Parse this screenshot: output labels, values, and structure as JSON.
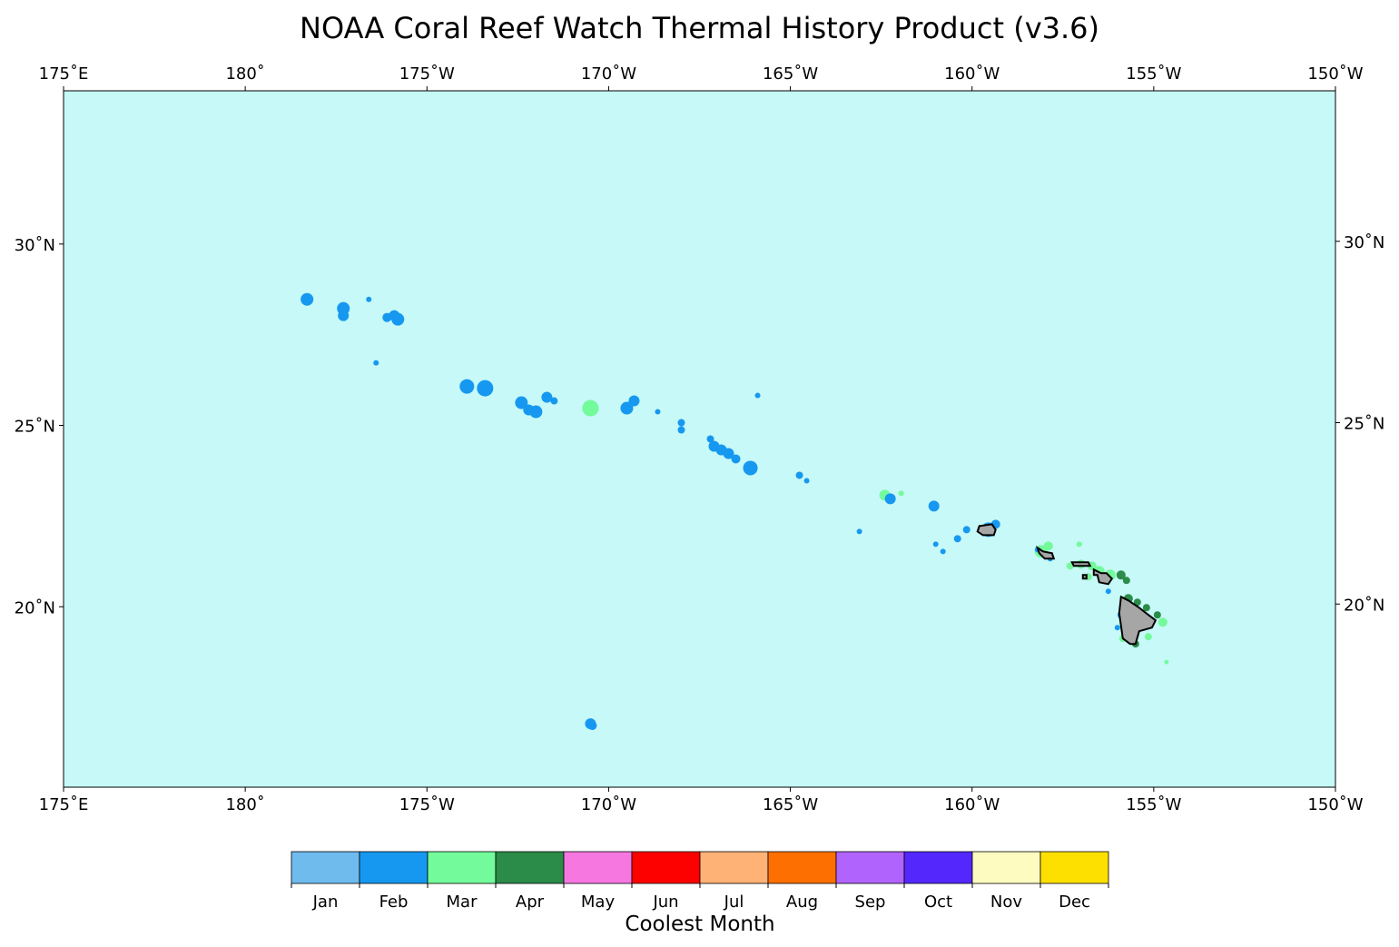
{
  "title": "NOAA Coral Reef Watch Thermal History Product (v3.6)",
  "map": {
    "ocean_color": "#c6f9f7",
    "land_color": "#a6a6a6",
    "lon_range": [
      175,
      210
    ],
    "lat_range": [
      15.0,
      34.2
    ],
    "lon_tick_labels": [
      "175˚E",
      "180˚",
      "175˚W",
      "170˚W",
      "165˚W",
      "160˚W",
      "155˚W",
      "150˚W"
    ],
    "lat_tick_labels": [
      "30˚N",
      "25˚N",
      "20˚N"
    ],
    "lat_ticks": [
      30,
      25,
      20
    ]
  },
  "colorbar": {
    "label": "Coolest Month",
    "entries": [
      {
        "label": "Jan",
        "color": "#6fbbee"
      },
      {
        "label": "Feb",
        "color": "#1698f1"
      },
      {
        "label": "Mar",
        "color": "#73fa9b"
      },
      {
        "label": "Apr",
        "color": "#2b8b49"
      },
      {
        "label": "May",
        "color": "#f777e0"
      },
      {
        "label": "Jun",
        "color": "#fd0000"
      },
      {
        "label": "Jul",
        "color": "#feb276"
      },
      {
        "label": "Aug",
        "color": "#fd6f00"
      },
      {
        "label": "Sep",
        "color": "#b163fd"
      },
      {
        "label": "Oct",
        "color": "#5428fc"
      },
      {
        "label": "Nov",
        "color": "#fdfbbf"
      },
      {
        "label": "Dec",
        "color": "#fde000"
      }
    ]
  },
  "reef_pixels": [
    {
      "lon": 181.7,
      "lat": 28.45,
      "month": "Feb",
      "size": 0.35
    },
    {
      "lon": 182.7,
      "lat": 28.2,
      "month": "Feb",
      "size": 0.35
    },
    {
      "lon": 182.7,
      "lat": 28.0,
      "month": "Feb",
      "size": 0.3
    },
    {
      "lon": 183.4,
      "lat": 28.45,
      "month": "Feb",
      "size": 0.15
    },
    {
      "lon": 183.6,
      "lat": 26.7,
      "month": "Feb",
      "size": 0.15
    },
    {
      "lon": 183.9,
      "lat": 27.95,
      "month": "Feb",
      "size": 0.25
    },
    {
      "lon": 184.2,
      "lat": 27.9,
      "month": "Feb",
      "size": 0.35
    },
    {
      "lon": 184.1,
      "lat": 28.0,
      "month": "Feb",
      "size": 0.3
    },
    {
      "lon": 186.1,
      "lat": 26.05,
      "month": "Feb",
      "size": 0.4
    },
    {
      "lon": 186.6,
      "lat": 26.0,
      "month": "Feb",
      "size": 0.45
    },
    {
      "lon": 187.6,
      "lat": 25.6,
      "month": "Feb",
      "size": 0.35
    },
    {
      "lon": 187.8,
      "lat": 25.4,
      "month": "Feb",
      "size": 0.3
    },
    {
      "lon": 188.0,
      "lat": 25.35,
      "month": "Feb",
      "size": 0.35
    },
    {
      "lon": 188.3,
      "lat": 25.75,
      "month": "Feb",
      "size": 0.3
    },
    {
      "lon": 188.5,
      "lat": 25.65,
      "month": "Feb",
      "size": 0.2
    },
    {
      "lon": 189.5,
      "lat": 25.45,
      "month": "Mar",
      "size": 0.45
    },
    {
      "lon": 190.5,
      "lat": 25.45,
      "month": "Feb",
      "size": 0.35
    },
    {
      "lon": 190.7,
      "lat": 25.65,
      "month": "Feb",
      "size": 0.3
    },
    {
      "lon": 191.35,
      "lat": 25.35,
      "month": "Feb",
      "size": 0.15
    },
    {
      "lon": 192.0,
      "lat": 25.05,
      "month": "Feb",
      "size": 0.2
    },
    {
      "lon": 192.0,
      "lat": 24.85,
      "month": "Feb",
      "size": 0.2
    },
    {
      "lon": 192.8,
      "lat": 24.6,
      "month": "Feb",
      "size": 0.2
    },
    {
      "lon": 192.9,
      "lat": 24.4,
      "month": "Feb",
      "size": 0.3
    },
    {
      "lon": 193.1,
      "lat": 24.3,
      "month": "Feb",
      "size": 0.3
    },
    {
      "lon": 193.3,
      "lat": 24.2,
      "month": "Feb",
      "size": 0.3
    },
    {
      "lon": 193.5,
      "lat": 24.05,
      "month": "Feb",
      "size": 0.25
    },
    {
      "lon": 193.9,
      "lat": 23.8,
      "month": "Feb",
      "size": 0.4
    },
    {
      "lon": 194.1,
      "lat": 25.8,
      "month": "Feb",
      "size": 0.15
    },
    {
      "lon": 195.25,
      "lat": 23.6,
      "month": "Feb",
      "size": 0.2
    },
    {
      "lon": 195.45,
      "lat": 23.45,
      "month": "Feb",
      "size": 0.15
    },
    {
      "lon": 196.9,
      "lat": 22.05,
      "month": "Feb",
      "size": 0.15
    },
    {
      "lon": 197.6,
      "lat": 23.05,
      "month": "Mar",
      "size": 0.3
    },
    {
      "lon": 197.75,
      "lat": 22.95,
      "month": "Feb",
      "size": 0.3
    },
    {
      "lon": 198.05,
      "lat": 23.1,
      "month": "Mar",
      "size": 0.15
    },
    {
      "lon": 198.95,
      "lat": 22.75,
      "month": "Feb",
      "size": 0.3
    },
    {
      "lon": 199.0,
      "lat": 21.7,
      "month": "Feb",
      "size": 0.15
    },
    {
      "lon": 199.2,
      "lat": 21.5,
      "month": "Feb",
      "size": 0.15
    },
    {
      "lon": 199.6,
      "lat": 21.85,
      "month": "Feb",
      "size": 0.2
    },
    {
      "lon": 199.85,
      "lat": 22.1,
      "month": "Feb",
      "size": 0.2
    },
    {
      "lon": 200.45,
      "lat": 22.1,
      "month": "Feb",
      "size": 0.4
    },
    {
      "lon": 200.65,
      "lat": 22.25,
      "month": "Feb",
      "size": 0.25
    },
    {
      "lon": 201.9,
      "lat": 21.5,
      "month": "Mar",
      "size": 0.35
    },
    {
      "lon": 201.8,
      "lat": 21.55,
      "month": "Feb",
      "size": 0.15
    },
    {
      "lon": 202.1,
      "lat": 21.65,
      "month": "Mar",
      "size": 0.25
    },
    {
      "lon": 202.15,
      "lat": 21.3,
      "month": "Feb",
      "size": 0.15
    },
    {
      "lon": 202.95,
      "lat": 21.7,
      "month": "Mar",
      "size": 0.15
    },
    {
      "lon": 202.7,
      "lat": 21.1,
      "month": "Mar",
      "size": 0.2
    },
    {
      "lon": 203.0,
      "lat": 21.15,
      "month": "Mar",
      "size": 0.25
    },
    {
      "lon": 203.3,
      "lat": 21.1,
      "month": "Mar",
      "size": 0.25
    },
    {
      "lon": 203.5,
      "lat": 20.95,
      "month": "Mar",
      "size": 0.3
    },
    {
      "lon": 203.2,
      "lat": 20.8,
      "month": "Mar",
      "size": 0.2
    },
    {
      "lon": 203.55,
      "lat": 20.75,
      "month": "Mar",
      "size": 0.2
    },
    {
      "lon": 203.8,
      "lat": 20.85,
      "month": "Mar",
      "size": 0.3
    },
    {
      "lon": 204.1,
      "lat": 20.85,
      "month": "Apr",
      "size": 0.25
    },
    {
      "lon": 204.25,
      "lat": 20.7,
      "month": "Apr",
      "size": 0.2
    },
    {
      "lon": 203.75,
      "lat": 20.4,
      "month": "Feb",
      "size": 0.15
    },
    {
      "lon": 204.3,
      "lat": 20.2,
      "month": "Apr",
      "size": 0.25
    },
    {
      "lon": 204.55,
      "lat": 20.1,
      "month": "Apr",
      "size": 0.2
    },
    {
      "lon": 204.8,
      "lat": 19.95,
      "month": "Apr",
      "size": 0.2
    },
    {
      "lon": 205.1,
      "lat": 19.75,
      "month": "Apr",
      "size": 0.2
    },
    {
      "lon": 205.25,
      "lat": 19.55,
      "month": "Mar",
      "size": 0.25
    },
    {
      "lon": 204.1,
      "lat": 19.75,
      "month": "Feb",
      "size": 0.2
    },
    {
      "lon": 204.0,
      "lat": 19.4,
      "month": "Feb",
      "size": 0.15
    },
    {
      "lon": 204.15,
      "lat": 19.1,
      "month": "Mar",
      "size": 0.2
    },
    {
      "lon": 204.5,
      "lat": 18.95,
      "month": "Apr",
      "size": 0.2
    },
    {
      "lon": 204.85,
      "lat": 19.15,
      "month": "Mar",
      "size": 0.2
    },
    {
      "lon": 205.35,
      "lat": 18.45,
      "month": "Mar",
      "size": 0.12
    },
    {
      "lon": 189.5,
      "lat": 16.75,
      "month": "Feb",
      "size": 0.3
    },
    {
      "lon": 189.55,
      "lat": 16.7,
      "month": "Feb",
      "size": 0.25
    }
  ],
  "islands": [
    {
      "name": "Kauai",
      "outline": [
        [
          200.2,
          22.2
        ],
        [
          200.55,
          22.25
        ],
        [
          200.65,
          22.1
        ],
        [
          200.6,
          21.95
        ],
        [
          200.3,
          21.95
        ],
        [
          200.15,
          22.05
        ]
      ]
    },
    {
      "name": "Oahu",
      "outline": [
        [
          201.8,
          21.6
        ],
        [
          201.95,
          21.5
        ],
        [
          202.2,
          21.45
        ],
        [
          202.25,
          21.3
        ],
        [
          202.0,
          21.3
        ],
        [
          201.85,
          21.45
        ]
      ]
    },
    {
      "name": "Molokai",
      "outline": [
        [
          202.75,
          21.2
        ],
        [
          203.2,
          21.2
        ],
        [
          203.25,
          21.1
        ],
        [
          202.8,
          21.1
        ]
      ]
    },
    {
      "name": "Lanai",
      "outline": [
        [
          203.05,
          20.85
        ],
        [
          203.15,
          20.85
        ],
        [
          203.15,
          20.75
        ],
        [
          203.05,
          20.75
        ]
      ]
    },
    {
      "name": "Maui",
      "outline": [
        [
          203.35,
          21.0
        ],
        [
          203.55,
          20.9
        ],
        [
          203.7,
          20.9
        ],
        [
          203.85,
          20.75
        ],
        [
          203.75,
          20.6
        ],
        [
          203.5,
          20.65
        ],
        [
          203.45,
          20.85
        ],
        [
          203.35,
          20.85
        ]
      ]
    },
    {
      "name": "Hawaii",
      "outline": [
        [
          204.1,
          20.25
        ],
        [
          204.3,
          20.15
        ],
        [
          204.6,
          19.95
        ],
        [
          204.85,
          19.75
        ],
        [
          205.05,
          19.6
        ],
        [
          204.95,
          19.4
        ],
        [
          204.6,
          19.3
        ],
        [
          204.5,
          18.95
        ],
        [
          204.35,
          18.95
        ],
        [
          204.15,
          19.1
        ],
        [
          204.1,
          19.45
        ],
        [
          204.05,
          19.8
        ]
      ]
    }
  ]
}
